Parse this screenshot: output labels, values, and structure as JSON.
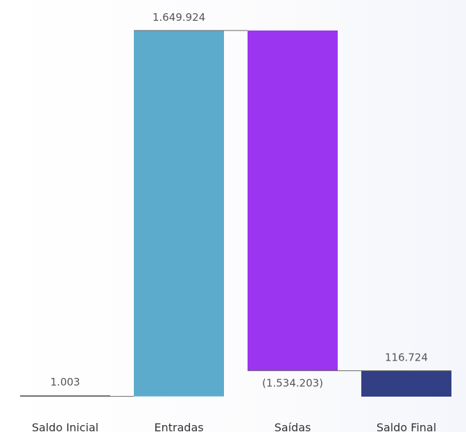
{
  "chart_data": {
    "type": "waterfall",
    "categories": [
      "Saldo Inicial",
      "Entradas",
      "Saídas",
      "Saldo Final"
    ],
    "values": [
      1003,
      1649924,
      -1534203,
      116724
    ],
    "data_labels": [
      "1.003",
      "1.649.924",
      "(1.534.203)",
      "116.724"
    ],
    "measures": [
      "total",
      "relative",
      "relative",
      "total"
    ],
    "colors": {
      "Saldo Inicial": "#7f7f7f",
      "Entradas": "#5dabcc",
      "Saídas": "#9b35f0",
      "Saldo Final": "#333f85",
      "connector": "#666666"
    },
    "title": "",
    "xlabel": "",
    "ylabel": "",
    "ylim": [
      0,
      1650927
    ],
    "grid": false,
    "legend": "none"
  }
}
